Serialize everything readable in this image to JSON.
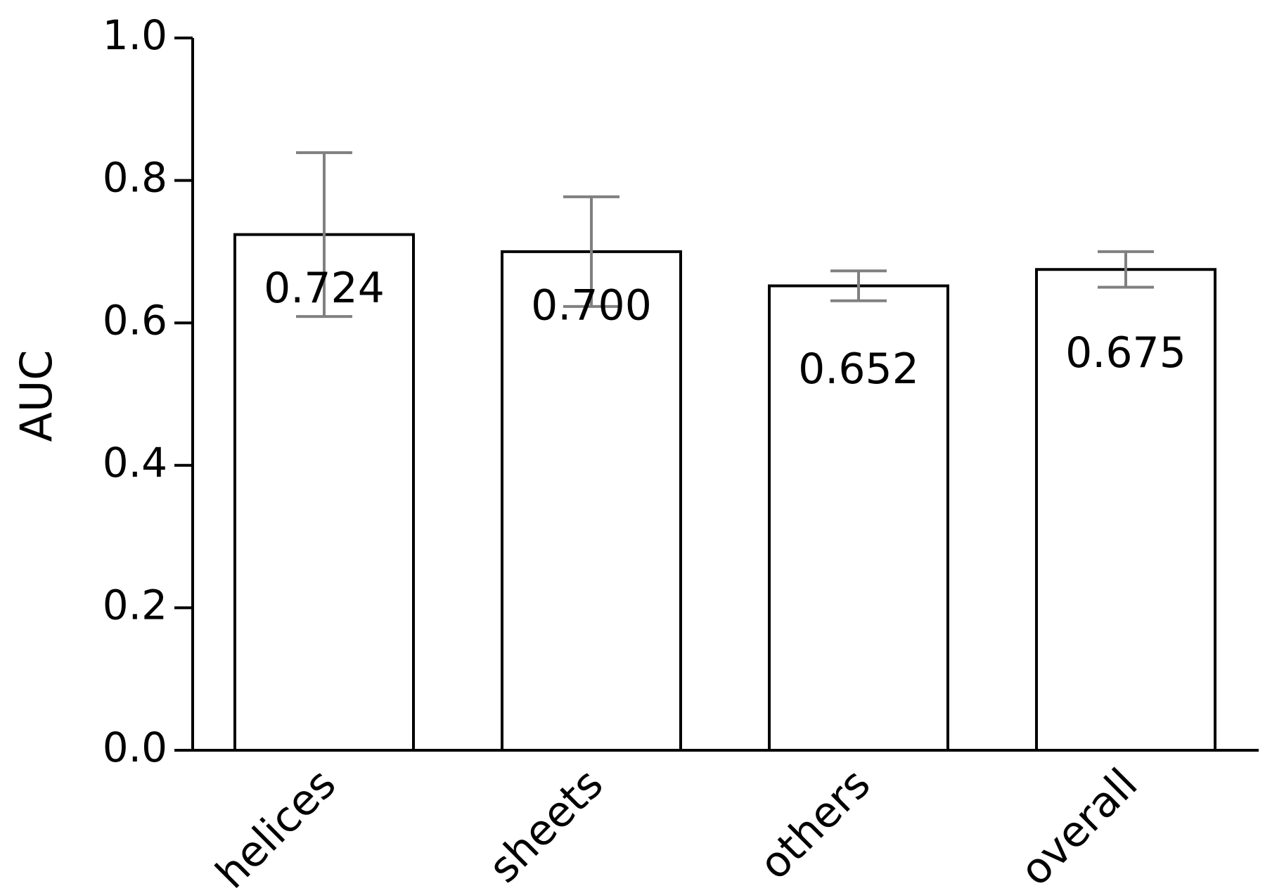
{
  "chart_data": {
    "type": "bar",
    "ylabel": "AUC",
    "categories": [
      "helices",
      "sheets",
      "others",
      "overall"
    ],
    "values": [
      0.724,
      0.7,
      0.652,
      0.675
    ],
    "value_labels": [
      "0.724",
      "0.700",
      "0.652",
      "0.675"
    ],
    "errors": [
      0.115,
      0.077,
      0.021,
      0.025
    ],
    "color": "#ffffff",
    "error_color": "#808080",
    "ylim": [
      0,
      1
    ],
    "yticks": [
      {
        "value": 0,
        "label": "0.0"
      },
      0.2,
      0.4,
      0.6,
      0.8,
      {
        "value": 1,
        "label": "1.0"
      }
    ],
    "grid": false
  }
}
